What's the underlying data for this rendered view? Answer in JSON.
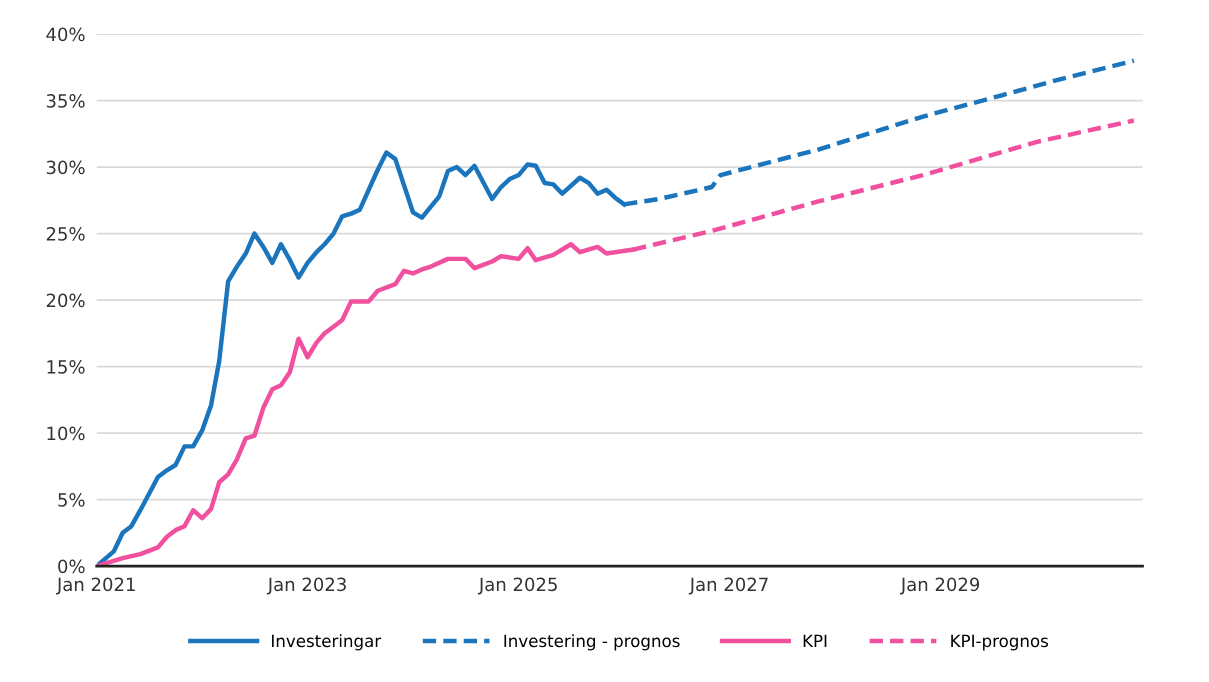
{
  "chart_data": {
    "type": "line",
    "xlim": [
      "2021-01",
      "2030-12"
    ],
    "xticks": [
      {
        "value": "2021-01",
        "label": "Jan 2021"
      },
      {
        "value": "2023-01",
        "label": "Jan 2023"
      },
      {
        "value": "2025-01",
        "label": "Jan 2025"
      },
      {
        "value": "2027-01",
        "label": "Jan 2027"
      },
      {
        "value": "2029-01",
        "label": "Jan 2029"
      }
    ],
    "ylim": [
      0,
      40
    ],
    "yticks": [
      {
        "value": 0,
        "label": "0%"
      },
      {
        "value": 5,
        "label": "5%"
      },
      {
        "value": 10,
        "label": "10%"
      },
      {
        "value": 15,
        "label": "15%"
      },
      {
        "value": 20,
        "label": "20%"
      },
      {
        "value": 25,
        "label": "25%"
      },
      {
        "value": 30,
        "label": "30%"
      },
      {
        "value": 35,
        "label": "35%"
      },
      {
        "value": 40,
        "label": "40%"
      }
    ],
    "grid": "y",
    "legend": "bottom",
    "series": [
      {
        "name": "Investeringar",
        "color": "#1a75bc",
        "line_style": "solid",
        "x": [
          "2021-01",
          "2021-03",
          "2021-04",
          "2021-05",
          "2021-06",
          "2021-08",
          "2021-09",
          "2021-10",
          "2021-11",
          "2021-12",
          "2022-01",
          "2022-02",
          "2022-03",
          "2022-04",
          "2022-05",
          "2022-06",
          "2022-07",
          "2022-08",
          "2022-09",
          "2022-10",
          "2022-11",
          "2022-12",
          "2023-01",
          "2023-02",
          "2023-03",
          "2023-04",
          "2023-05",
          "2023-06",
          "2023-07",
          "2023-09",
          "2023-10",
          "2023-11",
          "2024-01",
          "2024-02",
          "2024-04",
          "2024-05",
          "2024-06",
          "2024-07",
          "2024-08",
          "2024-10",
          "2024-11",
          "2024-12",
          "2025-01",
          "2025-02",
          "2025-03",
          "2025-04",
          "2025-05",
          "2025-06",
          "2025-08",
          "2025-09",
          "2025-10",
          "2025-11",
          "2025-12",
          "2026-01"
        ],
        "values": [
          0,
          1.1,
          2.5,
          3.0,
          4.2,
          6.7,
          7.2,
          7.6,
          9.0,
          9.0,
          10.2,
          12.1,
          15.4,
          21.4,
          22.5,
          23.5,
          25.0,
          24.0,
          22.8,
          24.2,
          23.0,
          21.7,
          22.8,
          23.6,
          24.2,
          25.0,
          26.3,
          26.5,
          26.8,
          29.8,
          31.1,
          30.6,
          26.6,
          26.2,
          27.8,
          29.7,
          30.0,
          29.4,
          30.1,
          27.6,
          28.5,
          29.1,
          29.4,
          30.2,
          30.1,
          28.8,
          28.7,
          28.0,
          29.2,
          28.8,
          28.0,
          28.3,
          27.7,
          27.2
        ]
      },
      {
        "name": "Investering - prognos",
        "color": "#1a75bc",
        "line_style": "dashed",
        "x": [
          "2026-01",
          "2026-05",
          "2026-11",
          "2026-12",
          "2027-11",
          "2028-11",
          "2029-08",
          "2030-02",
          "2030-11"
        ],
        "values": [
          27.2,
          27.6,
          28.5,
          29.4,
          31.3,
          33.8,
          35.4,
          36.5,
          38.0
        ]
      },
      {
        "name": "KPI",
        "color": "#f0509e",
        "line_style": "solid",
        "x": [
          "2021-01",
          "2021-04",
          "2021-06",
          "2021-08",
          "2021-09",
          "2021-10",
          "2021-11",
          "2021-12",
          "2022-01",
          "2022-02",
          "2022-03",
          "2022-04",
          "2022-05",
          "2022-06",
          "2022-07",
          "2022-08",
          "2022-09",
          "2022-10",
          "2022-11",
          "2022-12",
          "2023-01",
          "2023-02",
          "2023-03",
          "2023-04",
          "2023-05",
          "2023-06",
          "2023-08",
          "2023-09",
          "2023-11",
          "2023-12",
          "2024-01",
          "2024-02",
          "2024-03",
          "2024-05",
          "2024-07",
          "2024-08",
          "2024-10",
          "2024-11",
          "2025-01",
          "2025-02",
          "2025-03",
          "2025-05",
          "2025-07",
          "2025-08",
          "2025-10",
          "2025-11",
          "2026-02"
        ],
        "values": [
          0,
          0.6,
          0.9,
          1.4,
          2.2,
          2.7,
          3.0,
          4.2,
          3.6,
          4.3,
          6.3,
          6.9,
          8.0,
          9.6,
          9.8,
          11.9,
          13.3,
          13.6,
          14.6,
          17.1,
          15.7,
          16.8,
          17.5,
          18.0,
          18.5,
          19.9,
          19.9,
          20.7,
          21.2,
          22.2,
          22.0,
          22.3,
          22.5,
          23.1,
          23.1,
          22.4,
          22.9,
          23.3,
          23.1,
          23.9,
          23.0,
          23.4,
          24.2,
          23.6,
          24.0,
          23.5,
          23.8
        ]
      },
      {
        "name": "KPI-prognos",
        "color": "#f0509e",
        "line_style": "dashed",
        "x": [
          "2026-02",
          "2026-11",
          "2027-11",
          "2028-11",
          "2029-12",
          "2030-11"
        ],
        "values": [
          23.8,
          25.2,
          27.4,
          29.4,
          31.9,
          33.5
        ]
      }
    ]
  }
}
